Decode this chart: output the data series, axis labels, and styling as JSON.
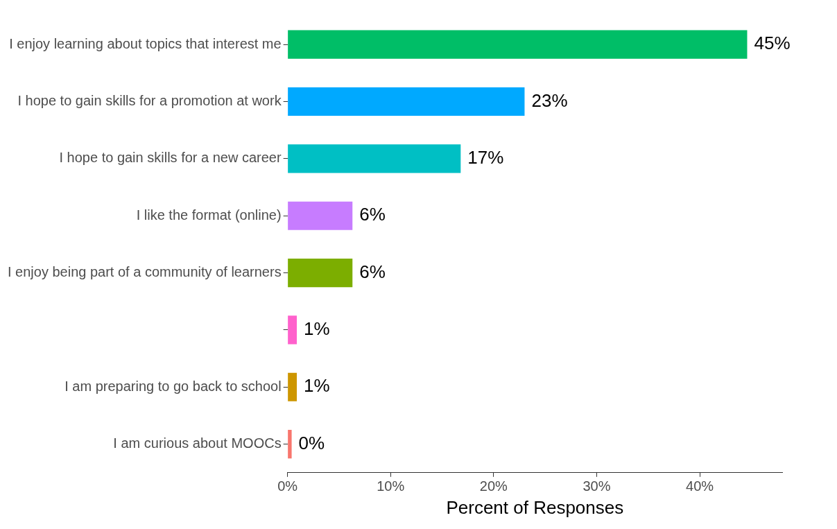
{
  "chart_data": {
    "type": "bar",
    "orientation": "horizontal",
    "xlabel": "Percent of Responses",
    "categories": [
      "I enjoy learning about topics that interest me",
      "I hope to gain skills for a promotion at work",
      "I hope to gain skills for a new career",
      "I like the format (online)",
      "I enjoy being part of a community of learners",
      null,
      "I am preparing to go back to school",
      "I am curious about MOOCs"
    ],
    "values": [
      44.6,
      23.0,
      16.8,
      6.3,
      6.3,
      0.9,
      0.9,
      0.4
    ],
    "value_labels": [
      "45%",
      "23%",
      "17%",
      "6%",
      "6%",
      "1%",
      "1%",
      "0%"
    ],
    "colors": [
      "#00be67",
      "#00a9ff",
      "#00bfc4",
      "#c77cff",
      "#7cae00",
      "#ff61cc",
      "#cd9600",
      "#f8766d"
    ],
    "xlim": [
      0,
      48
    ],
    "xticks": [
      {
        "value": 0,
        "label": "0%"
      },
      {
        "value": 10,
        "label": "10%"
      },
      {
        "value": 20,
        "label": "20%"
      },
      {
        "value": 30,
        "label": "30%"
      },
      {
        "value": 40,
        "label": "40%"
      }
    ],
    "grid": false,
    "legend": false
  }
}
